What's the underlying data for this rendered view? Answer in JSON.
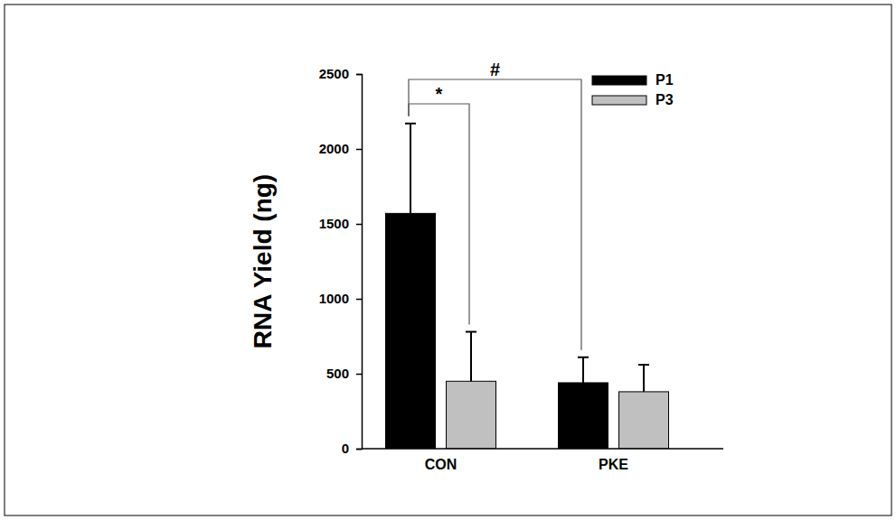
{
  "chart_data": {
    "type": "bar",
    "y_label": "RNA Yield (ng)",
    "categories": [
      "CON",
      "PKE"
    ],
    "series": [
      {
        "name": "P1",
        "color": "#000000",
        "values": [
          1570,
          440
        ],
        "errors": [
          600,
          170
        ]
      },
      {
        "name": "P3",
        "color": "#c0c0c0",
        "values": [
          450,
          380
        ],
        "errors": [
          330,
          180
        ]
      }
    ],
    "ylim": [
      0,
      2500
    ],
    "yticks": [
      0,
      500,
      1000,
      1500,
      2000,
      2500
    ],
    "legend": "top-right",
    "annotations": [
      "*",
      "#"
    ]
  }
}
